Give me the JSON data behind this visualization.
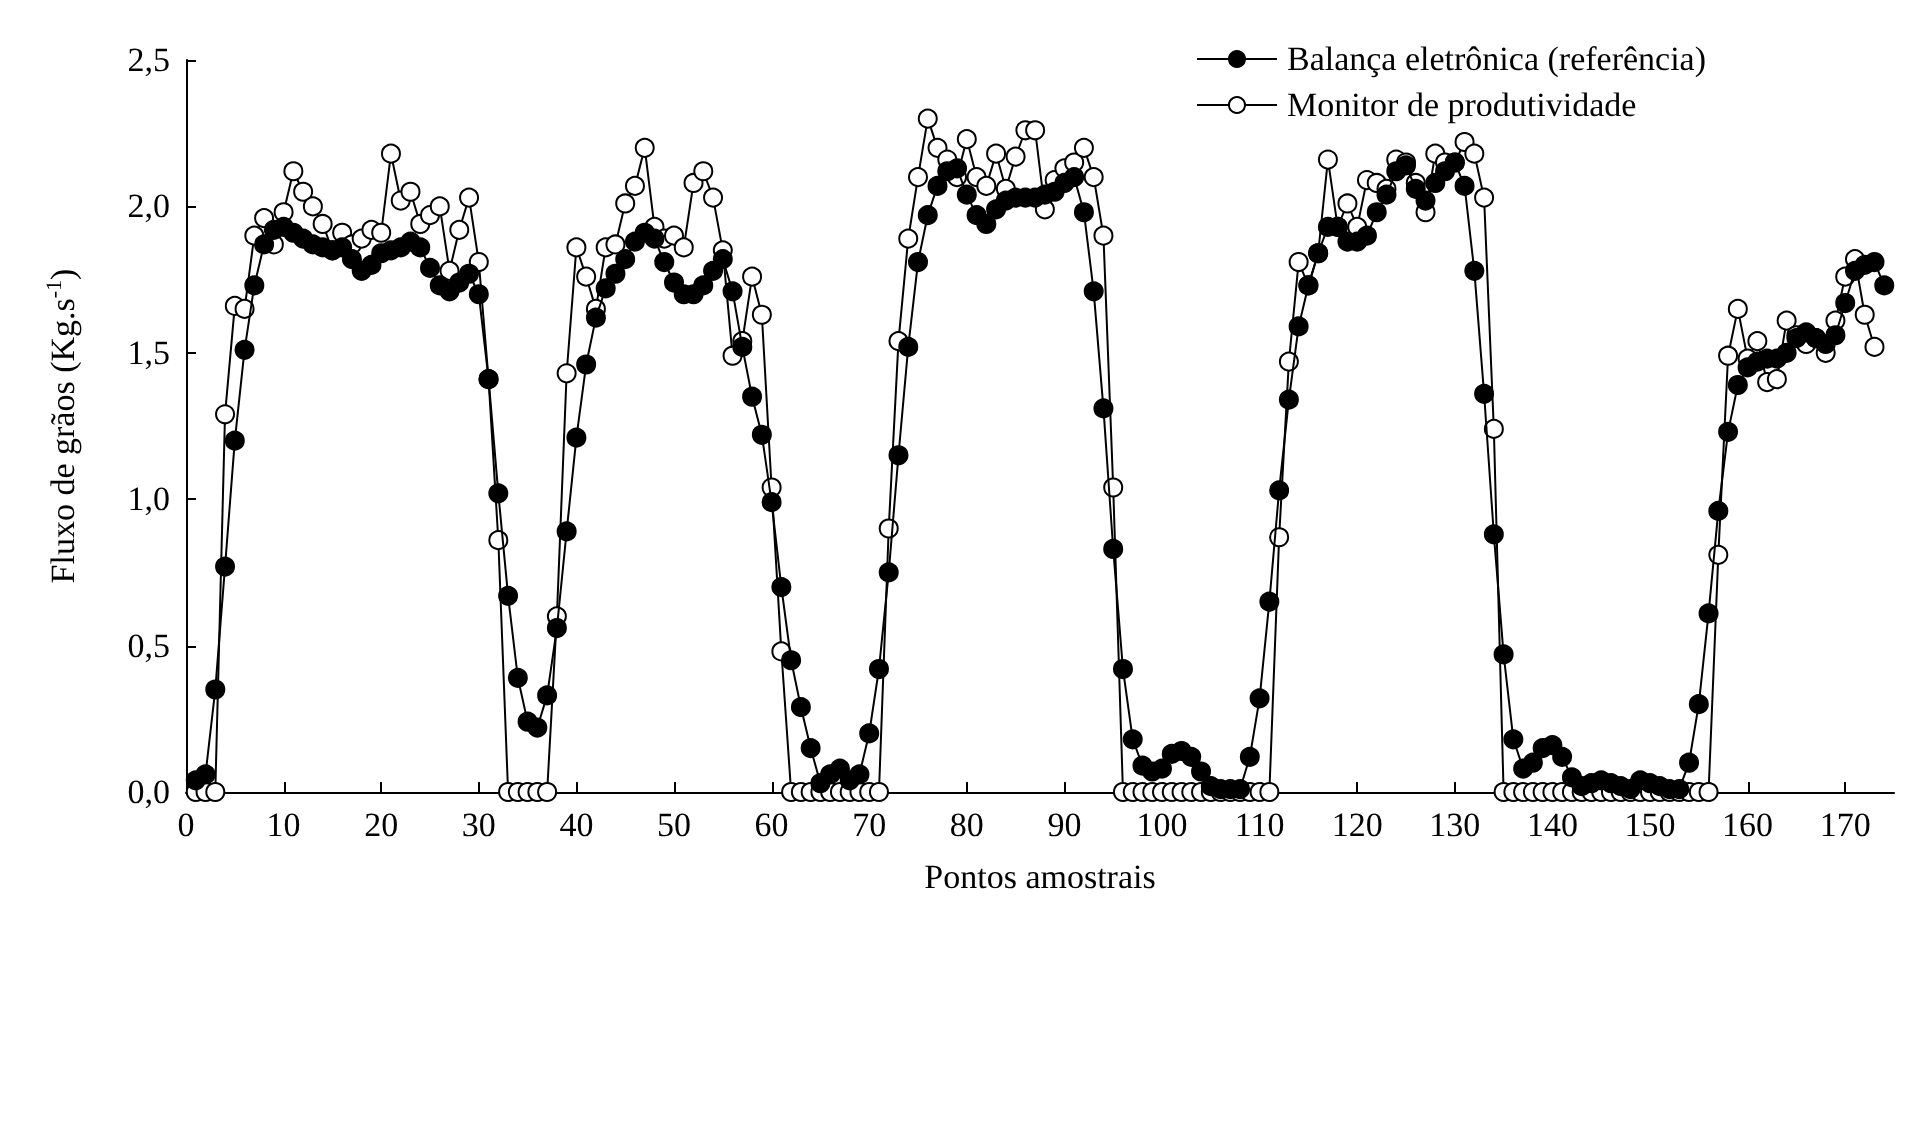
{
  "chart_data": {
    "type": "line",
    "xlabel": "Pontos amostrais",
    "ylabel": "Fluxo de grãos (Kg.s$^{-1}$)",
    "xlim": [
      0,
      175
    ],
    "xticks": [
      0,
      10,
      20,
      30,
      40,
      50,
      60,
      70,
      80,
      90,
      100,
      110,
      120,
      130,
      140,
      150,
      160,
      170
    ],
    "ylim": [
      0,
      2.5
    ],
    "yticks": [
      {
        "value": 0,
        "label": "0,0"
      },
      {
        "value": 0.5,
        "label": "0,5"
      },
      {
        "value": 1,
        "label": "1,0"
      },
      {
        "value": 1.5,
        "label": "1,5"
      },
      {
        "value": 2,
        "label": "2,0"
      },
      {
        "value": 2.5,
        "label": "2,5"
      }
    ],
    "grid": false,
    "legend": "top right",
    "marker": "circle",
    "line_style": "solid",
    "series": [
      {
        "name": "Balança eletrônica (referência)",
        "color": "#000000",
        "x": [
          1,
          2,
          3,
          4,
          5,
          6,
          7,
          8,
          9,
          10,
          11,
          12,
          13,
          14,
          15,
          16,
          17,
          18,
          19,
          20,
          21,
          22,
          23,
          24,
          25,
          26,
          27,
          28,
          29,
          30,
          31,
          32,
          33,
          34,
          35,
          36,
          37,
          38,
          39,
          40,
          41,
          42,
          43,
          44,
          45,
          46,
          47,
          48,
          49,
          50,
          51,
          52,
          53,
          54,
          55,
          56,
          57,
          58,
          59,
          60,
          61,
          62,
          63,
          64,
          65,
          66,
          67,
          68,
          69,
          70,
          71,
          72,
          73,
          74,
          75,
          76,
          77,
          78,
          79,
          80,
          81,
          82,
          83,
          84,
          85,
          86,
          87,
          88,
          89,
          90,
          91,
          92,
          93,
          94,
          95,
          96,
          97,
          98,
          99,
          100,
          101,
          102,
          103,
          104,
          105,
          106,
          107,
          108,
          109,
          110,
          111,
          112,
          113,
          114,
          115,
          116,
          117,
          118,
          119,
          120,
          121,
          122,
          123,
          124,
          125,
          126,
          127,
          128,
          129,
          130,
          131,
          132,
          133,
          134,
          135,
          136,
          137,
          138,
          139,
          140,
          141,
          142,
          143,
          144,
          145,
          146,
          147,
          148,
          149,
          150,
          151,
          152,
          153,
          154,
          155,
          156,
          157,
          158,
          159,
          160,
          161,
          162,
          163,
          164,
          165,
          166,
          167,
          168,
          169,
          170,
          171,
          172,
          173,
          174
        ],
        "values": [
          0.04,
          0.06,
          0.35,
          0.77,
          1.2,
          1.51,
          1.73,
          1.87,
          1.92,
          1.93,
          1.91,
          1.89,
          1.87,
          1.86,
          1.85,
          1.86,
          1.82,
          1.78,
          1.8,
          1.84,
          1.85,
          1.86,
          1.88,
          1.86,
          1.79,
          1.73,
          1.71,
          1.74,
          1.77,
          1.7,
          1.41,
          1.02,
          0.67,
          0.39,
          0.24,
          0.22,
          0.33,
          0.56,
          0.89,
          1.21,
          1.46,
          1.62,
          1.72,
          1.77,
          1.82,
          1.88,
          1.91,
          1.89,
          1.81,
          1.74,
          1.7,
          1.7,
          1.73,
          1.78,
          1.82,
          1.71,
          1.52,
          1.35,
          1.22,
          0.99,
          0.7,
          0.45,
          0.29,
          0.15,
          0.03,
          0.06,
          0.08,
          0.04,
          0.06,
          0.2,
          0.42,
          0.75,
          1.15,
          1.52,
          1.81,
          1.97,
          2.07,
          2.12,
          2.13,
          2.04,
          1.97,
          1.94,
          1.99,
          2.02,
          2.03,
          2.03,
          2.03,
          2.04,
          2.05,
          2.08,
          2.1,
          1.98,
          1.71,
          1.31,
          0.83,
          0.42,
          0.18,
          0.09,
          0.07,
          0.08,
          0.13,
          0.14,
          0.12,
          0.07,
          0.02,
          0.01,
          0.01,
          0.01,
          0.12,
          0.32,
          0.65,
          1.03,
          1.34,
          1.59,
          1.73,
          1.84,
          1.93,
          1.93,
          1.88,
          1.88,
          1.9,
          1.98,
          2.04,
          2.12,
          2.14,
          2.06,
          2.02,
          2.08,
          2.12,
          2.15,
          2.07,
          1.78,
          1.36,
          0.88,
          0.47,
          0.18,
          0.08,
          0.1,
          0.15,
          0.16,
          0.12,
          0.05,
          0.02,
          0.03,
          0.04,
          0.03,
          0.02,
          0.01,
          0.04,
          0.03,
          0.02,
          0.01,
          0.01,
          0.1,
          0.3,
          0.61,
          0.96,
          1.23,
          1.39,
          1.45,
          1.47,
          1.48,
          1.48,
          1.5,
          1.55,
          1.57,
          1.55,
          1.53,
          1.56,
          1.67,
          1.78,
          1.8,
          1.81,
          1.73
        ]
      },
      {
        "name": "Monitor de produtividade",
        "color": "#ffffff",
        "x": [
          1,
          2,
          3,
          4,
          5,
          6,
          7,
          8,
          9,
          10,
          11,
          12,
          13,
          14,
          15,
          16,
          17,
          18,
          19,
          20,
          21,
          22,
          23,
          24,
          25,
          26,
          27,
          28,
          29,
          30,
          31,
          32,
          33,
          34,
          35,
          36,
          37,
          38,
          39,
          40,
          41,
          42,
          43,
          44,
          45,
          46,
          47,
          48,
          49,
          50,
          51,
          52,
          53,
          54,
          55,
          56,
          57,
          58,
          59,
          60,
          61,
          62,
          63,
          64,
          65,
          66,
          67,
          68,
          69,
          70,
          71,
          72,
          73,
          74,
          75,
          76,
          77,
          78,
          79,
          80,
          81,
          82,
          83,
          84,
          85,
          86,
          87,
          88,
          89,
          90,
          91,
          92,
          93,
          94,
          95,
          96,
          97,
          98,
          99,
          100,
          101,
          102,
          103,
          104,
          105,
          106,
          107,
          108,
          109,
          110,
          111,
          112,
          113,
          114,
          115,
          116,
          117,
          118,
          119,
          120,
          121,
          122,
          123,
          124,
          125,
          126,
          127,
          128,
          129,
          130,
          131,
          132,
          133,
          134,
          135,
          136,
          137,
          138,
          139,
          140,
          141,
          142,
          143,
          144,
          145,
          146,
          147,
          148,
          149,
          150,
          151,
          152,
          153,
          154,
          155,
          156,
          157,
          158,
          159,
          160,
          161,
          162,
          163,
          164,
          165,
          166,
          167,
          168,
          169,
          170,
          171,
          172,
          173
        ],
        "values": [
          0,
          0,
          0,
          1.29,
          1.66,
          1.65,
          1.9,
          1.96,
          1.87,
          1.98,
          2.12,
          2.05,
          2.0,
          1.94,
          1.85,
          1.91,
          1.87,
          1.89,
          1.92,
          1.91,
          2.18,
          2.02,
          2.05,
          1.94,
          1.97,
          2.0,
          1.78,
          1.92,
          2.03,
          1.81,
          1.41,
          0.86,
          0,
          0,
          0,
          0,
          0,
          0.6,
          1.43,
          1.86,
          1.76,
          1.65,
          1.86,
          1.87,
          2.01,
          2.07,
          2.2,
          1.93,
          1.89,
          1.9,
          1.86,
          2.08,
          2.12,
          2.03,
          1.85,
          1.49,
          1.54,
          1.76,
          1.63,
          1.04,
          0.48,
          0,
          0,
          0,
          0,
          0,
          0,
          0,
          0,
          0,
          0,
          0.9,
          1.54,
          1.89,
          2.1,
          2.3,
          2.2,
          2.16,
          2.1,
          2.23,
          2.1,
          2.07,
          2.18,
          2.06,
          2.17,
          2.26,
          2.26,
          1.99,
          2.09,
          2.13,
          2.15,
          2.2,
          2.1,
          1.9,
          1.04,
          0,
          0,
          0,
          0,
          0,
          0,
          0,
          0,
          0,
          0,
          0,
          0,
          0,
          0,
          0,
          0,
          0.87,
          1.47,
          1.81,
          1.73,
          1.84,
          2.16,
          1.93,
          2.01,
          1.93,
          2.09,
          2.08,
          2.06,
          2.16,
          2.15,
          2.08,
          1.98,
          2.18,
          2.15,
          2.15,
          2.22,
          2.18,
          2.03,
          1.24,
          0,
          0,
          0,
          0,
          0,
          0,
          0,
          0,
          0,
          0,
          0,
          0,
          0,
          0,
          0,
          0,
          0,
          0,
          0,
          0,
          0,
          0,
          0.81,
          1.49,
          1.65,
          1.48,
          1.54,
          1.4,
          1.41,
          1.61,
          1.56,
          1.53,
          1.55,
          1.5,
          1.61,
          1.76,
          1.82,
          1.63,
          1.52
        ]
      }
    ]
  }
}
